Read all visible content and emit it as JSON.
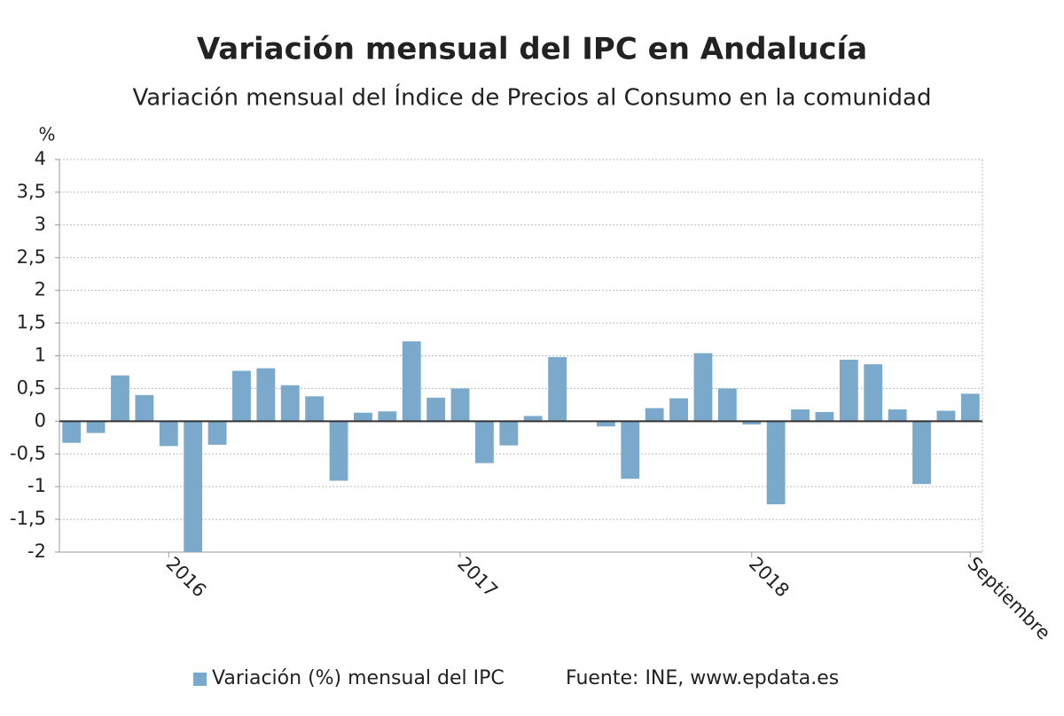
{
  "chart_data": {
    "type": "bar",
    "title": "Variación mensual del IPC en Andalucía",
    "subtitle": "Variación mensual del Índice de Precios al Consumo en la comunidad",
    "y_unit": "%",
    "source": "Fuente: INE, www.epdata.es",
    "categories": [
      null,
      null,
      null,
      null,
      "2016",
      null,
      null,
      null,
      null,
      null,
      null,
      null,
      null,
      null,
      null,
      null,
      "2017",
      null,
      null,
      null,
      null,
      null,
      null,
      null,
      null,
      null,
      null,
      null,
      "2018",
      null,
      null,
      null,
      null,
      null,
      null,
      null,
      null,
      "Septiembre"
    ],
    "series": [
      {
        "name": "Variación (%) mensual del IPC",
        "color": "#7aa9cc",
        "values": [
          -0.33,
          -0.18,
          0.7,
          0.4,
          -0.38,
          -2.0,
          -0.36,
          0.77,
          0.81,
          0.55,
          0.38,
          -0.91,
          0.13,
          0.15,
          1.22,
          0.36,
          0.5,
          -0.64,
          -0.37,
          0.08,
          0.98,
          0,
          -0.08,
          -0.88,
          0.2,
          0.35,
          1.04,
          0.5,
          -0.05,
          -1.27,
          0.18,
          0.14,
          0.94,
          0.87,
          0.18,
          -0.96,
          0.16,
          0.42
        ]
      }
    ],
    "ylim": [
      -2,
      4
    ],
    "yticks": [
      -2,
      {
        "value": -1.5,
        "label": "-1,5"
      },
      -1,
      {
        "value": -0.5,
        "label": "-0,5"
      },
      0,
      {
        "value": 0.5,
        "label": "0,5"
      },
      1,
      {
        "value": 1.5,
        "label": "1,5"
      },
      2,
      {
        "value": 2.5,
        "label": "2,5"
      },
      3,
      {
        "value": 3.5,
        "label": "3,5"
      },
      4
    ],
    "grid": true
  }
}
